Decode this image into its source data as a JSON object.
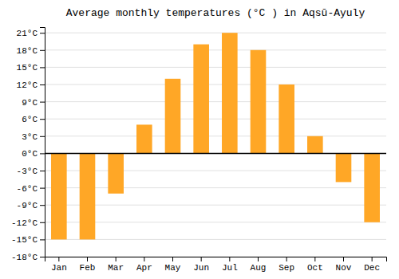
{
  "chart_data": {
    "type": "bar",
    "title": "Average monthly temperatures (°C ) in Aqsū-Ayuly",
    "categories": [
      "Jan",
      "Feb",
      "Mar",
      "Apr",
      "May",
      "Jun",
      "Jul",
      "Aug",
      "Sep",
      "Oct",
      "Nov",
      "Dec"
    ],
    "values": [
      -15,
      -15,
      -7,
      5,
      13,
      19,
      21,
      18,
      12,
      3,
      -5,
      -12
    ],
    "color": "#FFA726",
    "ylim": [
      -18,
      22
    ],
    "yticks": [
      {
        "value": -18,
        "label": "-18°C"
      },
      {
        "value": -15,
        "label": "-15°C"
      },
      {
        "value": -12,
        "label": "-12°C"
      },
      {
        "value": -9,
        "label": "-9°C"
      },
      {
        "value": -6,
        "label": "-6°C"
      },
      {
        "value": -3,
        "label": "-3°C"
      },
      {
        "value": 0,
        "label": "0°C"
      },
      {
        "value": 3,
        "label": "3°C"
      },
      {
        "value": 6,
        "label": "6°C"
      },
      {
        "value": 9,
        "label": "9°C"
      },
      {
        "value": 12,
        "label": "12°C"
      },
      {
        "value": 15,
        "label": "15°C"
      },
      {
        "value": 18,
        "label": "18°C"
      },
      {
        "value": 21,
        "label": "21°C"
      }
    ],
    "grid": true
  }
}
